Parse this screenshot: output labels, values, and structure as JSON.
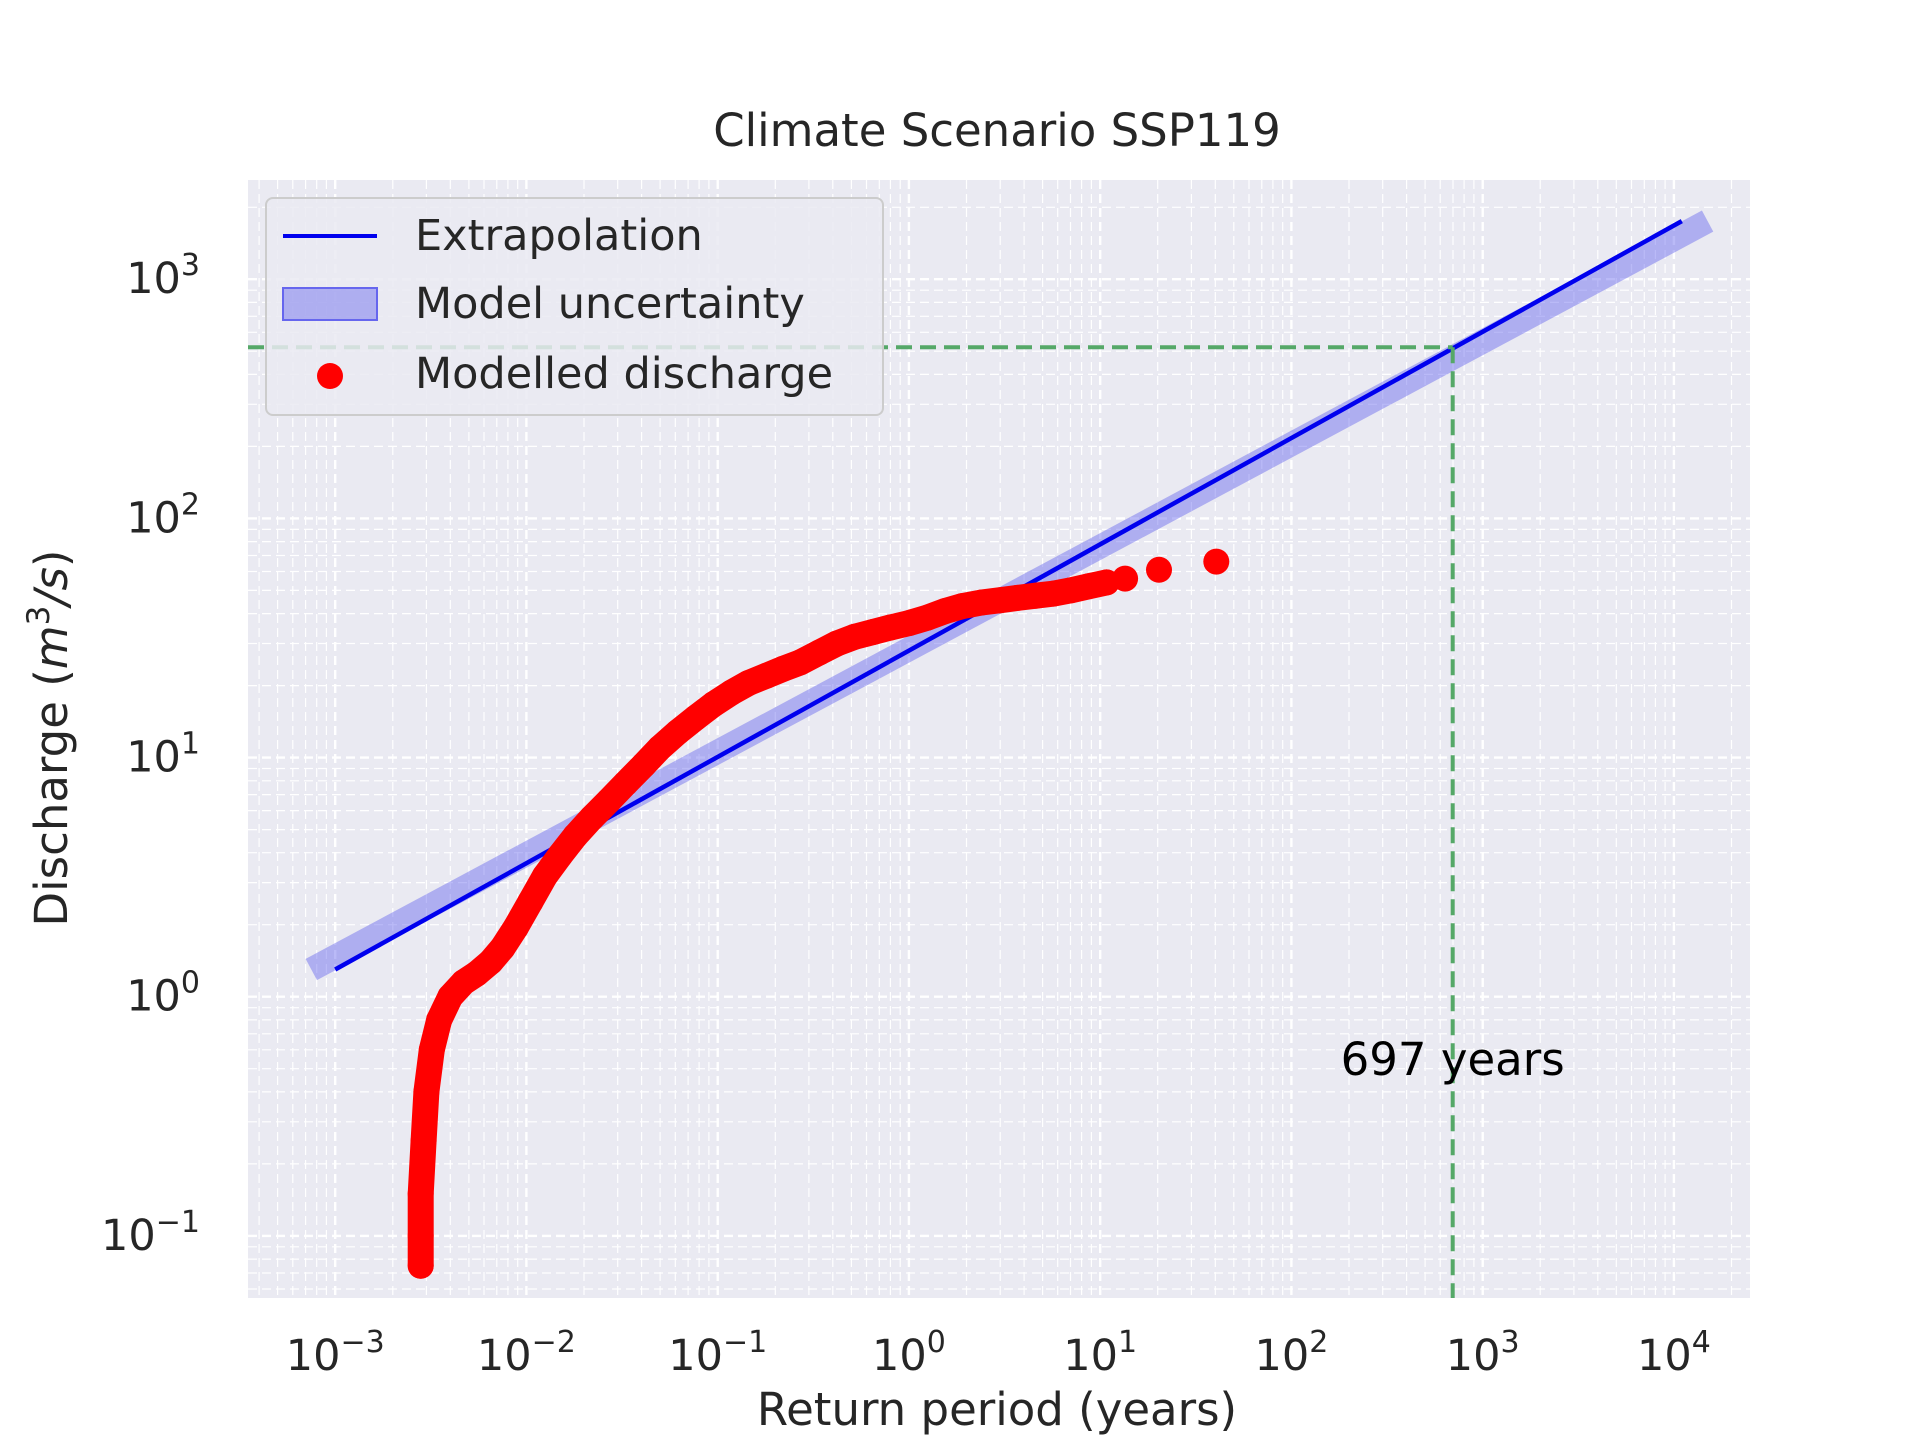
{
  "chart_data": {
    "type": "scatter",
    "title": "Climate Scenario SSP119",
    "xlabel": "Return period (years)",
    "ylabel_prefix": "Discharge (",
    "ylabel_unit_base": "m",
    "ylabel_unit_exp": "3",
    "ylabel_unit_rest": "/s",
    "ylabel_suffix": ")",
    "x_scale": "log",
    "y_scale": "log",
    "xlim": [
      0.00035,
      25000
    ],
    "ylim": [
      0.055,
      2600
    ],
    "x_ticks": [
      {
        "base": "10",
        "exp": "−3",
        "value": 0.001
      },
      {
        "base": "10",
        "exp": "−2",
        "value": 0.01
      },
      {
        "base": "10",
        "exp": "−1",
        "value": 0.1
      },
      {
        "base": "10",
        "exp": "0",
        "value": 1
      },
      {
        "base": "10",
        "exp": "1",
        "value": 10
      },
      {
        "base": "10",
        "exp": "2",
        "value": 100
      },
      {
        "base": "10",
        "exp": "3",
        "value": 1000
      },
      {
        "base": "10",
        "exp": "4",
        "value": 10000
      }
    ],
    "y_ticks": [
      {
        "base": "10",
        "exp": "−1",
        "value": 0.1
      },
      {
        "base": "10",
        "exp": "0",
        "value": 1
      },
      {
        "base": "10",
        "exp": "1",
        "value": 10
      },
      {
        "base": "10",
        "exp": "2",
        "value": 100
      },
      {
        "base": "10",
        "exp": "3",
        "value": 1000
      }
    ],
    "grid": true,
    "legend_position": "upper-left",
    "legend": [
      {
        "label": "Extrapolation",
        "kind": "line",
        "color": "#0000ee"
      },
      {
        "label": "Model uncertainty",
        "kind": "patch",
        "color": "#6666ee"
      },
      {
        "label": "Modelled discharge",
        "kind": "marker",
        "color": "#ff0000"
      }
    ],
    "series": [
      {
        "name": "Extrapolation",
        "type": "line",
        "color": "#0000ee",
        "x": [
          0.001,
          11000
        ],
        "y": [
          1.3,
          1750
        ]
      },
      {
        "name": "Model uncertainty",
        "type": "band",
        "color": "#6666ee",
        "x": [
          0.00075,
          15000
        ],
        "y": [
          1.3,
          1750
        ]
      },
      {
        "name": "Modelled discharge",
        "type": "scatter",
        "color": "#ff0000",
        "x": [
          0.0028,
          0.0028,
          0.0028,
          0.0029,
          0.003,
          0.0032,
          0.0035,
          0.004,
          0.0047,
          0.0055,
          0.0065,
          0.0075,
          0.0088,
          0.0105,
          0.0125,
          0.015,
          0.018,
          0.022,
          0.027,
          0.033,
          0.041,
          0.05,
          0.062,
          0.077,
          0.095,
          0.118,
          0.145,
          0.18,
          0.22,
          0.27,
          0.34,
          0.42,
          0.52,
          0.65,
          0.8,
          1.0,
          1.25,
          1.55,
          1.9,
          2.4,
          3.0,
          3.7,
          4.6,
          5.7,
          7.0,
          8.7,
          10.8,
          13.5,
          20.3,
          40.5
        ],
        "y": [
          0.075,
          0.1,
          0.15,
          0.25,
          0.4,
          0.6,
          0.8,
          1.0,
          1.15,
          1.25,
          1.4,
          1.6,
          1.95,
          2.5,
          3.2,
          3.9,
          4.7,
          5.6,
          6.6,
          7.8,
          9.3,
          11.0,
          12.8,
          14.7,
          16.7,
          18.7,
          20.5,
          22.0,
          23.5,
          25.0,
          27.5,
          30.0,
          32.0,
          33.5,
          35.0,
          36.5,
          38.5,
          41.0,
          43.0,
          44.5,
          45.5,
          46.5,
          47.5,
          48.5,
          50.0,
          52.0,
          54.0,
          56.0,
          61.0,
          66.0
        ]
      }
    ],
    "reference_lines": {
      "y_value": 520,
      "x_value": 697,
      "color": "#55a868"
    },
    "annotation": {
      "text": "697 years",
      "x": 697,
      "y": 0.55
    }
  }
}
